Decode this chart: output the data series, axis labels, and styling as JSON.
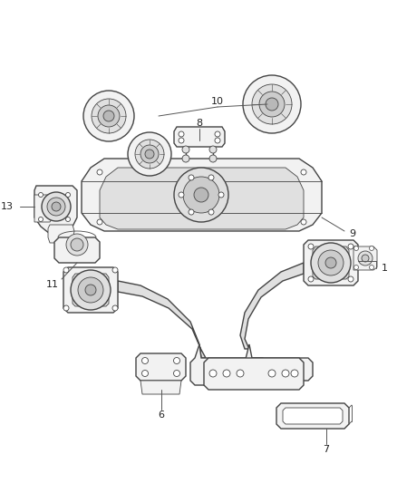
{
  "bg": "#ffffff",
  "lc": "#444444",
  "fc_light": "#f2f2f2",
  "fc_mid": "#e0e0e0",
  "fc_dark": "#cccccc",
  "fc_darker": "#b8b8b8",
  "lw_main": 1.0,
  "lw_thin": 0.6
}
